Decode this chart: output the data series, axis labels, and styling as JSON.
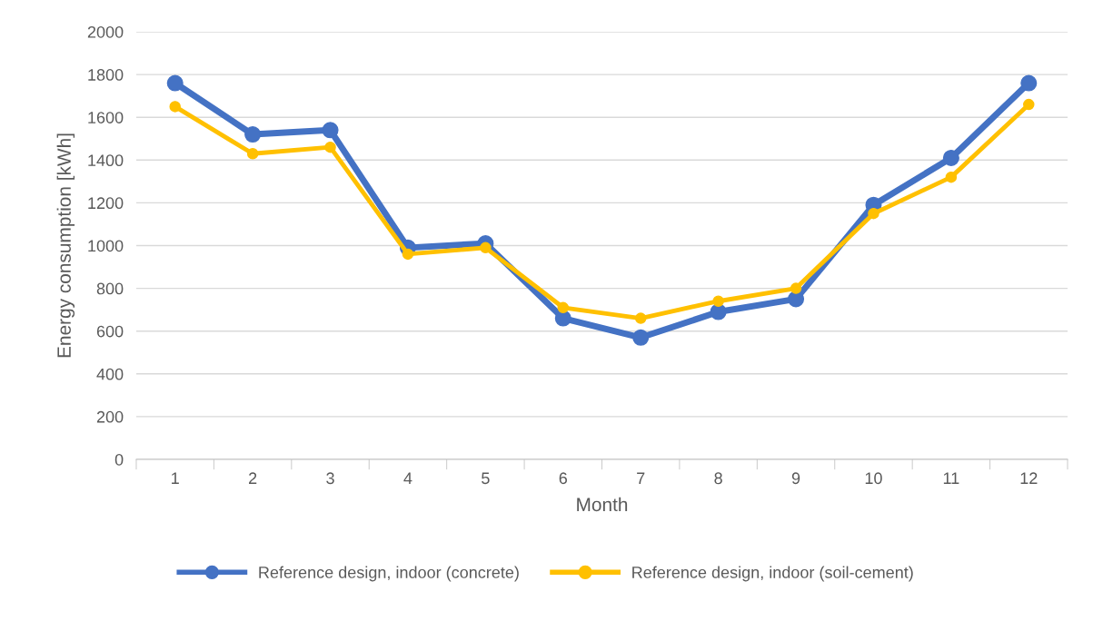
{
  "chart_data": {
    "type": "line",
    "xlabel": "Month",
    "ylabel": "Energy consumption [kWh]",
    "categories": [
      "1",
      "2",
      "3",
      "4",
      "5",
      "6",
      "7",
      "8",
      "9",
      "10",
      "11",
      "12"
    ],
    "series": [
      {
        "name": "Reference design, indoor (concrete)",
        "color": "#4472c4",
        "values": [
          1760,
          1520,
          1540,
          990,
          1010,
          660,
          570,
          690,
          750,
          1190,
          1410,
          1760
        ]
      },
      {
        "name": "Reference design, indoor (soil-cement)",
        "color": "#ffc000",
        "values": [
          1650,
          1430,
          1460,
          960,
          990,
          710,
          660,
          740,
          800,
          1150,
          1320,
          1660
        ]
      }
    ],
    "ylim": [
      0,
      2000
    ],
    "yticks": [
      0,
      200,
      400,
      600,
      800,
      1000,
      1200,
      1400,
      1600,
      1800,
      2000
    ],
    "grid": "y",
    "legend": "bottom",
    "marker": "circle",
    "line_style": "solid"
  }
}
